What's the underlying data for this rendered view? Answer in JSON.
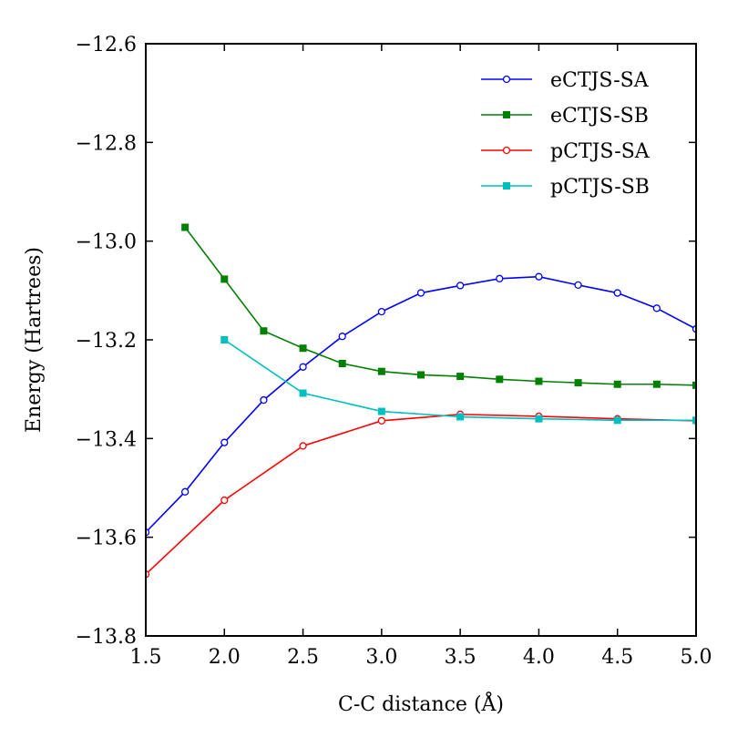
{
  "chart_data": {
    "type": "line",
    "title": "",
    "xlabel": "C-C distance (Å)",
    "ylabel": "Energy (Hartrees)",
    "xlim": [
      1.5,
      5.0
    ],
    "ylim": [
      -13.8,
      -12.6
    ],
    "xticks": [
      1.5,
      2.0,
      2.5,
      3.0,
      3.5,
      4.0,
      4.5,
      5.0
    ],
    "xtick_labels": [
      "1.5",
      "2.0",
      "2.5",
      "3.0",
      "3.5",
      "4.0",
      "4.5",
      "5.0"
    ],
    "yticks": [
      -12.6,
      -12.8,
      -13.0,
      -13.2,
      -13.4,
      -13.6,
      -13.8
    ],
    "ytick_labels": [
      "−12.6",
      "−12.8",
      "−13.0",
      "−13.2",
      "−13.4",
      "−13.6",
      "−13.8"
    ],
    "grid": false,
    "legend_position": "top-right",
    "series": [
      {
        "name": "eCTJS-SA",
        "color": "#0000ff",
        "marker": "circle",
        "x": [
          1.5,
          1.75,
          2.0,
          2.25,
          2.5,
          2.75,
          3.0,
          3.25,
          3.5,
          3.75,
          4.0,
          4.25,
          4.5,
          4.75,
          5.0
        ],
        "y": [
          -13.59,
          -13.508,
          -13.408,
          -13.322,
          -13.255,
          -13.193,
          -13.143,
          -13.105,
          -13.09,
          -13.076,
          -13.072,
          -13.089,
          -13.105,
          -13.136,
          -13.178
        ]
      },
      {
        "name": "eCTJS-SB",
        "color": "#008000",
        "marker": "square",
        "x": [
          1.75,
          2.0,
          2.25,
          2.5,
          2.75,
          3.0,
          3.25,
          3.5,
          3.75,
          4.0,
          4.25,
          4.5,
          4.75,
          5.0
        ],
        "y": [
          -12.972,
          -13.077,
          -13.182,
          -13.217,
          -13.248,
          -13.264,
          -13.271,
          -13.274,
          -13.28,
          -13.284,
          -13.287,
          -13.29,
          -13.29,
          -13.292
        ]
      },
      {
        "name": "pCTJS-SA",
        "color": "#ff0000",
        "marker": "circle",
        "x": [
          1.5,
          2.0,
          2.5,
          3.0,
          3.5,
          4.0,
          4.5,
          5.0
        ],
        "y": [
          -13.675,
          -13.525,
          -13.415,
          -13.364,
          -13.351,
          -13.355,
          -13.36,
          -13.364
        ]
      },
      {
        "name": "pCTJS-SB",
        "color": "#00bfbf",
        "marker": "square",
        "x": [
          2.0,
          2.5,
          3.0,
          3.5,
          4.0,
          4.5,
          5.0
        ],
        "y": [
          -13.2,
          -13.308,
          -13.345,
          -13.356,
          -13.36,
          -13.363,
          -13.363
        ]
      }
    ]
  }
}
